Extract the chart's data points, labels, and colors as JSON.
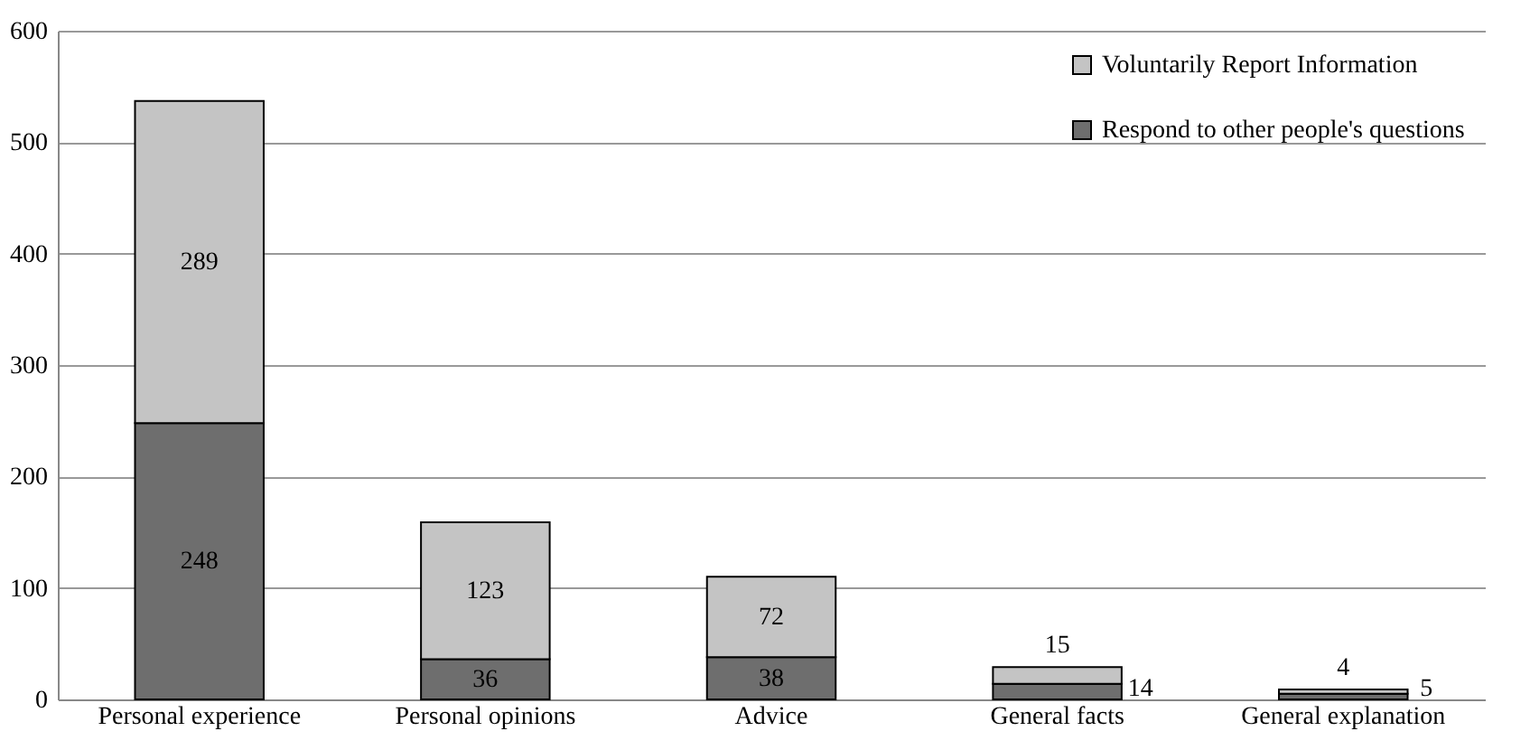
{
  "chart_data": {
    "type": "bar",
    "stacked": true,
    "categories": [
      "Personal experience",
      "Personal opinions",
      "Advice",
      "General facts",
      "General explanation"
    ],
    "series": [
      {
        "name": "Respond to other people's questions",
        "color": "#6e6e6e",
        "values": [
          248,
          36,
          38,
          14,
          5
        ]
      },
      {
        "name": "Voluntarily Report Information",
        "color": "#c4c4c4",
        "values": [
          289,
          123,
          72,
          15,
          4
        ]
      }
    ],
    "ylim": [
      0,
      600
    ],
    "yticks": [
      0,
      100,
      200,
      300,
      400,
      500,
      600
    ],
    "grid": "y",
    "legend": "top right",
    "data_labels": true
  }
}
